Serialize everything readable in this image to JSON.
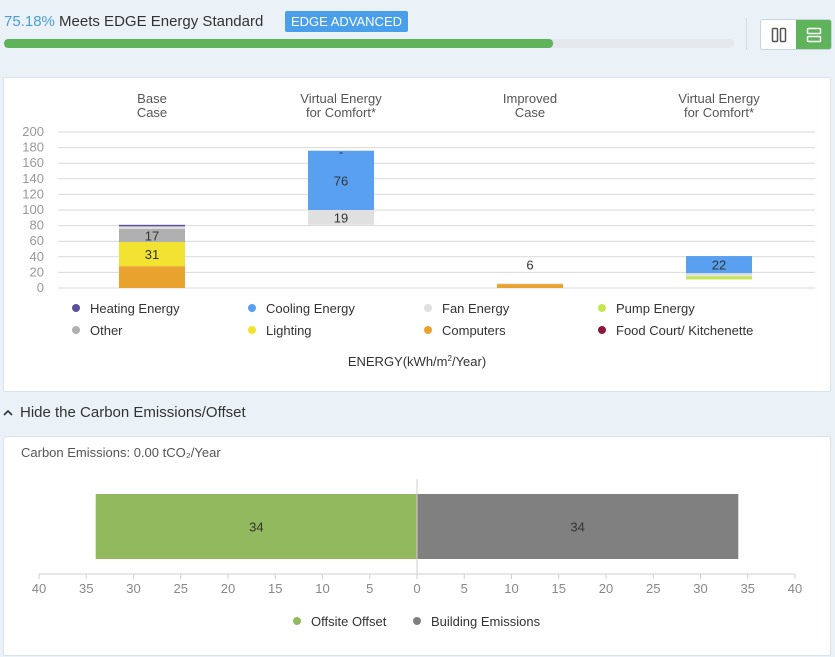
{
  "header": {
    "percent": "75.18%",
    "status_text": "Meets EDGE Energy Standard",
    "badge": "EDGE ADVANCED",
    "progress_fraction": 0.7518
  },
  "colors": {
    "accent_blue": "#4a9fd8",
    "badge_blue": "#4a9fea",
    "progress_green": "#5fb35a",
    "offset_green": "#93b95e",
    "emissions_gray": "#808080"
  },
  "toggle": {
    "split_label": "split-view",
    "stacked_label": "stacked-view"
  },
  "energy_chart": {
    "legend": [
      {
        "name": "Heating Energy",
        "color": "#5c4f9c"
      },
      {
        "name": "Cooling Energy",
        "color": "#5aa0f0"
      },
      {
        "name": "Fan Energy",
        "color": "#e0e0e0"
      },
      {
        "name": "Pump Energy",
        "color": "#c6e64e"
      },
      {
        "name": "Other",
        "color": "#b0b0b0"
      },
      {
        "name": "Lighting",
        "color": "#f2e232"
      },
      {
        "name": "Computers",
        "color": "#eaa22e"
      },
      {
        "name": "Food Court/ Kitchenette",
        "color": "#8b1a3a"
      }
    ],
    "xlabel_main": "ENERGY(kWh/m",
    "xlabel_sup": "2",
    "xlabel_tail": "/Year)"
  },
  "chart_data": [
    {
      "type": "bar",
      "stacked": true,
      "title": "",
      "xlabel": "ENERGY(kWh/m²/Year)",
      "ylabel": "",
      "ylim": [
        0,
        200
      ],
      "yticks": [
        0,
        20,
        40,
        60,
        80,
        100,
        120,
        140,
        160,
        180,
        200
      ],
      "categories": [
        {
          "line1": "Base",
          "line2": "Case"
        },
        {
          "line1": "Virtual Energy",
          "line2": "for Comfort*"
        },
        {
          "line1": "Improved",
          "line2": "Case"
        },
        {
          "line1": "Virtual Energy",
          "line2": "for Comfort*"
        }
      ],
      "bars": [
        {
          "base": 0,
          "segments": [
            {
              "series": "Computers",
              "value": 28,
              "label": ""
            },
            {
              "series": "Lighting",
              "value": 31,
              "label": "31"
            },
            {
              "series": "Other",
              "value": 17,
              "label": "17"
            },
            {
              "series": "Fan Energy",
              "value": 3,
              "label": ""
            },
            {
              "series": "Heating Energy",
              "value": 2,
              "label": ""
            }
          ]
        },
        {
          "base": 81,
          "segments": [
            {
              "series": "Fan Energy",
              "value": 19,
              "label": "19"
            },
            {
              "series": "Cooling Energy",
              "value": 76,
              "label": "76"
            }
          ],
          "top_label": "-"
        },
        {
          "base": 0,
          "segments": [
            {
              "series": "Computers",
              "value": 5,
              "label": ""
            },
            {
              "series": "Fan Energy",
              "value": 1,
              "label": ""
            }
          ],
          "top_label": "6"
        },
        {
          "base": 11,
          "segments": [
            {
              "series": "Pump Energy",
              "value": 4,
              "label": ""
            },
            {
              "series": "Fan Energy",
              "value": 4,
              "label": ""
            },
            {
              "series": "Cooling Energy",
              "value": 22,
              "label": "22"
            }
          ]
        }
      ]
    },
    {
      "type": "bar",
      "orientation": "horizontal",
      "title": "Carbon Emissions",
      "xlabel": "",
      "ylabel": "",
      "xlim": [
        -40,
        40
      ],
      "xticks": [
        40,
        35,
        30,
        25,
        20,
        15,
        10,
        5,
        0,
        5,
        10,
        15,
        20,
        25,
        30,
        35,
        40
      ],
      "series": [
        {
          "name": "Offsite Offset",
          "value": 34,
          "label": "34",
          "direction": "left",
          "color": "#93b95e"
        },
        {
          "name": "Building Emissions",
          "value": 34,
          "label": "34",
          "direction": "right",
          "color": "#808080"
        }
      ]
    }
  ],
  "carbon": {
    "hide_label": "Hide the Carbon Emissions/Offset",
    "emissions_text": "Carbon Emissions: 0.00 tCO₂/Year"
  }
}
